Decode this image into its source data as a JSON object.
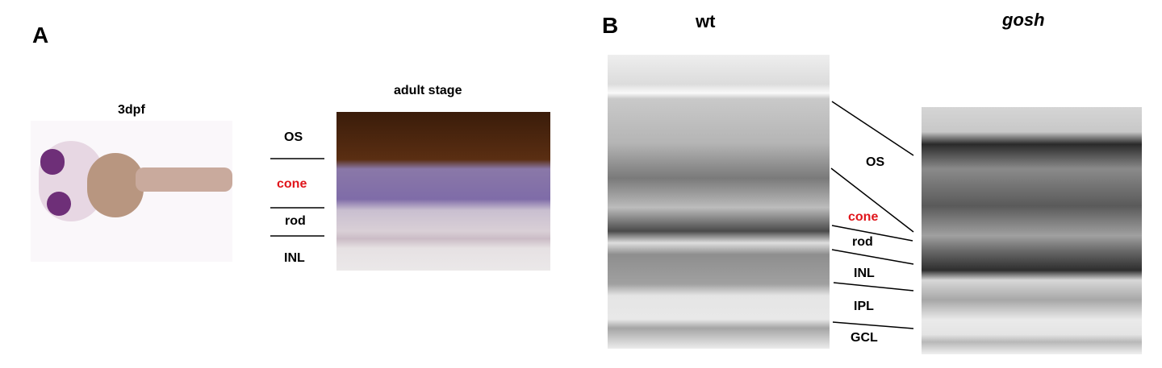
{
  "panel_a": {
    "letter": "A",
    "larva_label": "3dpf",
    "adult_label": "adult stage",
    "layers": [
      "OS",
      "cone",
      "rod",
      "INL"
    ]
  },
  "panel_b": {
    "letter": "B",
    "wt_label": "wt",
    "mutant_label": "gosh",
    "layers": [
      "OS",
      "cone",
      "rod",
      "INL",
      "IPL",
      "GCL"
    ]
  },
  "colors": {
    "highlight": "#e0151b",
    "text": "#000000"
  }
}
